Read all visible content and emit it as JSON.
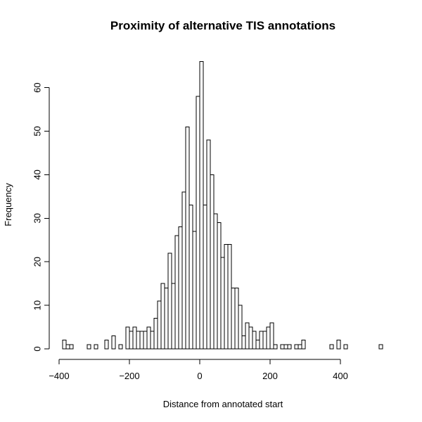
{
  "chart_data": {
    "type": "bar",
    "title": "Proximity of alternative TIS annotations",
    "xlabel": "Distance from annotated start",
    "ylabel": "Frequency",
    "bin_width": 10,
    "xlim": [
      -400,
      525
    ],
    "ylim": [
      0,
      66
    ],
    "x_ticks": [
      -400,
      -200,
      0,
      200,
      400
    ],
    "x_tick_labels": [
      "−400",
      "−200",
      "0",
      "200",
      "400"
    ],
    "y_ticks": [
      0,
      10,
      20,
      30,
      40,
      50,
      60
    ],
    "y_tick_labels": [
      "0",
      "10",
      "20",
      "30",
      "40",
      "50",
      "60"
    ],
    "grid": false,
    "bins_start": [
      -390,
      -380,
      -370,
      -360,
      -350,
      -340,
      -330,
      -320,
      -310,
      -300,
      -290,
      -280,
      -270,
      -260,
      -250,
      -240,
      -230,
      -220,
      -210,
      -200,
      -190,
      -180,
      -170,
      -160,
      -150,
      -140,
      -130,
      -120,
      -110,
      -100,
      -90,
      -80,
      -70,
      -60,
      -50,
      -40,
      -30,
      -20,
      -10,
      0,
      10,
      20,
      30,
      40,
      50,
      60,
      70,
      80,
      90,
      100,
      110,
      120,
      130,
      140,
      150,
      160,
      170,
      180,
      190,
      200,
      210,
      220,
      230,
      240,
      250,
      260,
      270,
      280,
      290,
      300,
      310,
      320,
      330,
      340,
      350,
      360,
      370,
      380,
      390,
      400,
      410,
      420,
      430,
      440,
      450,
      460,
      470,
      480,
      490,
      500,
      510
    ],
    "values": [
      2,
      1,
      1,
      0,
      0,
      0,
      0,
      1,
      0,
      1,
      0,
      0,
      2,
      0,
      3,
      0,
      1,
      0,
      5,
      4,
      5,
      4,
      4,
      4,
      5,
      4,
      7,
      11,
      15,
      14,
      22,
      15,
      26,
      28,
      36,
      51,
      33,
      27,
      58,
      66,
      33,
      48,
      40,
      31,
      29,
      21,
      24,
      24,
      14,
      14,
      10,
      3,
      6,
      5,
      4,
      2,
      4,
      4,
      5,
      6,
      1,
      0,
      1,
      1,
      1,
      0,
      1,
      1,
      2,
      0,
      0,
      0,
      0,
      0,
      0,
      0,
      1,
      0,
      2,
      0,
      1,
      0,
      0,
      0,
      0,
      0,
      0,
      0,
      0,
      0,
      1
    ]
  }
}
